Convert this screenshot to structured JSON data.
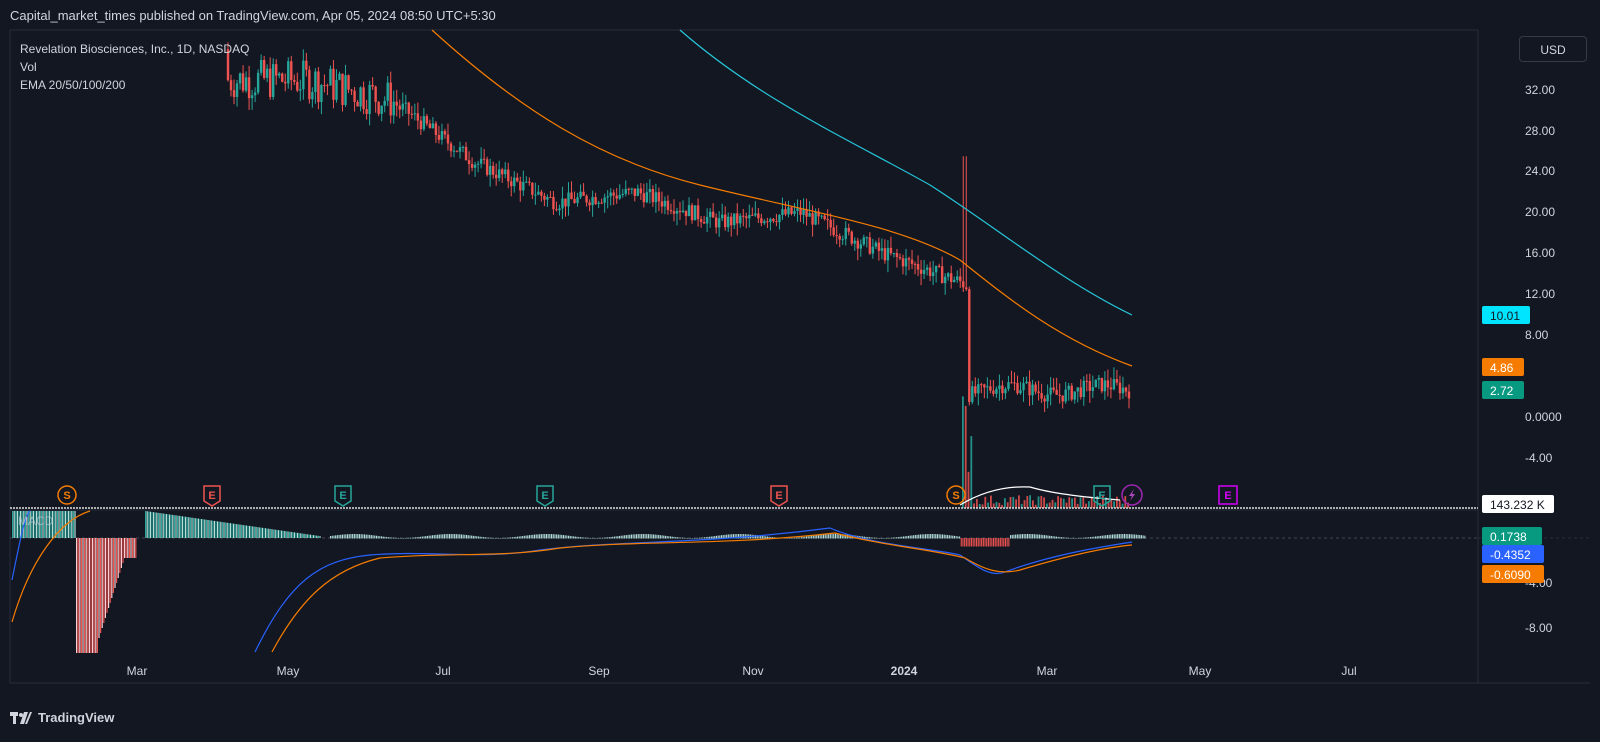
{
  "header": {
    "publisher": "Capital_market_times published on TradingView.com, Apr 05, 2024 08:50 UTC+5:30"
  },
  "legend": {
    "symbol": "Revelation Biosciences, Inc., 1D, NASDAQ",
    "volume": "Vol",
    "ema": "EMA 20/50/100/200"
  },
  "currency_button": "USD",
  "macd_label": "MACD",
  "footer": {
    "brand": "TradingView"
  },
  "colors": {
    "up": "#26a69a",
    "down": "#ef5350",
    "ema_orange": "#f57c00",
    "ema_teal": "#26c6da",
    "macd_blue": "#2962ff"
  },
  "chart_data": {
    "type": "candlestick",
    "x_axis": {
      "ticks": [
        "Mar",
        "May",
        "Jul",
        "Sep",
        "Nov",
        "2024",
        "Mar",
        "May",
        "Jul"
      ]
    },
    "price_axis": {
      "ticks": [
        "32.00",
        "28.00",
        "24.00",
        "20.00",
        "16.00",
        "12.00",
        "8.00",
        "0.0000",
        "-4.00"
      ],
      "ylim": [
        -8,
        36
      ]
    },
    "macd_axis": {
      "ticks": [
        "-4.00",
        "-8.00"
      ]
    },
    "price_labels": {
      "ema_teal": "10.01",
      "ema_orange": "4.86",
      "last": "2.72",
      "volume": "143.232 K"
    },
    "macd_labels": {
      "histogram": "0.1738",
      "macd": "-0.4352",
      "signal": "-0.6090"
    },
    "event_markers": [
      {
        "label": "S",
        "type": "split"
      },
      {
        "label": "E",
        "type": "earnings-bad"
      },
      {
        "label": "E",
        "type": "earnings-good"
      },
      {
        "label": "E",
        "type": "earnings-good"
      },
      {
        "label": "E",
        "type": "earnings-bad"
      },
      {
        "label": "S",
        "type": "split"
      },
      {
        "label": "E",
        "type": "earnings-good"
      },
      {
        "label": "",
        "type": "dividend-flash"
      },
      {
        "label": "E",
        "type": "earnings-upcoming"
      }
    ],
    "close_trend": [
      {
        "month": "Apr 2023",
        "close": 33
      },
      {
        "month": "May 2023",
        "close": 33
      },
      {
        "month": "Jun 2023",
        "close": 31
      },
      {
        "month": "Jul 2023",
        "close": 25
      },
      {
        "month": "Aug 2023",
        "close": 21
      },
      {
        "month": "Sep 2023",
        "close": 22
      },
      {
        "month": "Oct 2023",
        "close": 19
      },
      {
        "month": "Nov 2023",
        "close": 20
      },
      {
        "month": "Dec 2023",
        "close": 16
      },
      {
        "month": "Jan 2024",
        "close": 13
      },
      {
        "month": "Feb 2024",
        "close": 2.5
      },
      {
        "month": "Mar 2024",
        "close": 2.7
      }
    ]
  }
}
